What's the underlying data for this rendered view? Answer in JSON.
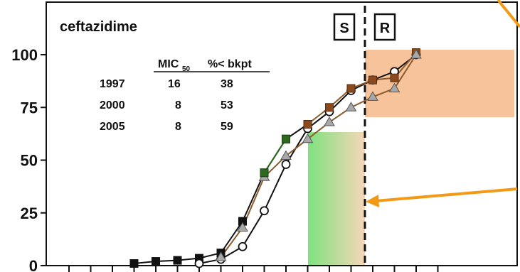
{
  "chart_data": {
    "type": "line",
    "title": "ceftazidime",
    "ylim": [
      0,
      120
    ],
    "yticks": [
      "0",
      "25",
      "50",
      "75",
      "100"
    ],
    "ytick_values": [
      0,
      25,
      50,
      75,
      100
    ],
    "x_positions": [
      1,
      2,
      3,
      4,
      5,
      6,
      7,
      8,
      9,
      10,
      11,
      12,
      13,
      14,
      15,
      16,
      17,
      18
    ],
    "breakpoint_x": 12,
    "susceptible_label": "S",
    "resistant_label": "R",
    "table": {
      "header": [
        "",
        "MIC",
        "50",
        "%< bkpt"
      ],
      "rows": [
        [
          "1997",
          "16",
          "38"
        ],
        [
          "2000",
          "8",
          "53"
        ],
        [
          "2005",
          "8",
          "59"
        ]
      ]
    },
    "series": [
      {
        "marker": "square-black",
        "color": "#111111",
        "x": [
          4,
          5,
          6,
          7,
          8,
          9,
          10,
          11,
          12
        ],
        "y": [
          1,
          2,
          2.5,
          3.5,
          6,
          21,
          44,
          60,
          67
        ]
      },
      {
        "marker": "circle-open",
        "color": "#111111",
        "x": [
          7,
          8,
          9,
          10,
          11,
          12,
          13,
          14,
          15,
          16,
          17
        ],
        "y": [
          1,
          3,
          9,
          26,
          48,
          65,
          73,
          83,
          88,
          92,
          100
        ]
      },
      {
        "marker": "square-brown",
        "color": "#8a5a2b",
        "x": [
          12,
          13,
          14,
          15,
          16,
          17
        ],
        "y": [
          67,
          75,
          84,
          88,
          89,
          101
        ]
      },
      {
        "marker": "triangle-gray",
        "color": "#8a5a2b",
        "x": [
          8,
          9,
          10,
          11,
          12,
          13,
          14,
          15,
          16,
          17
        ],
        "y": [
          4,
          18,
          42,
          52,
          60,
          68,
          75,
          80,
          84,
          100
        ]
      },
      {
        "marker": "square-green",
        "color": "#2d6a1e",
        "x": [
          10,
          11
        ],
        "y": [
          44,
          60
        ]
      }
    ],
    "colors": {
      "orange_band": "#f6b98a",
      "arrow": "#f29a17",
      "green_band_left": "#7fe27f",
      "green_band_right": "#f6d6b8"
    }
  }
}
